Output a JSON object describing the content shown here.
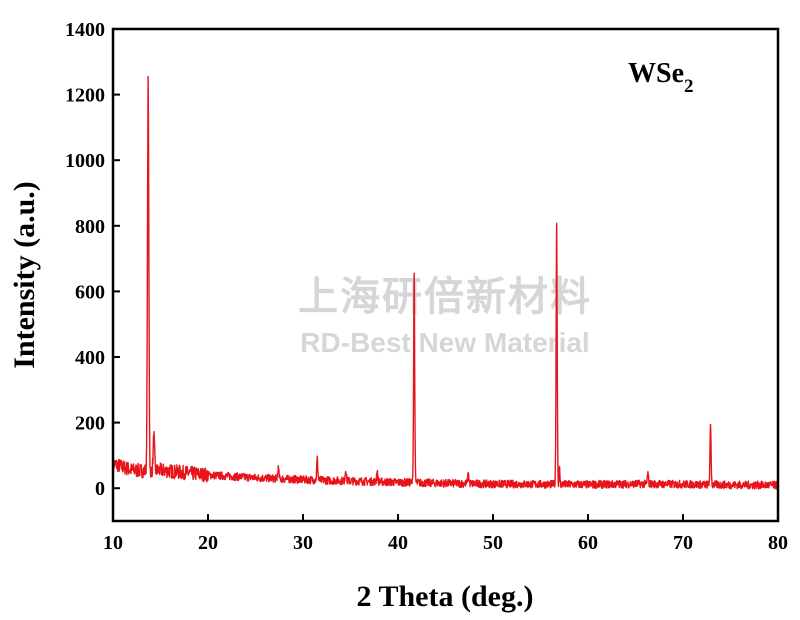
{
  "chart_data": {
    "type": "line",
    "title": "",
    "xlabel": "2 Theta (deg.)",
    "ylabel": "Intensity (a.u.)",
    "xlim": [
      10,
      80
    ],
    "ylim": [
      -100,
      1400
    ],
    "xticks": [
      10,
      20,
      30,
      40,
      50,
      60,
      70,
      80
    ],
    "yticks": [
      0,
      200,
      400,
      600,
      800,
      1000,
      1200,
      1400
    ],
    "grid": false,
    "annotation": {
      "base": "WSe",
      "subscript": "2"
    },
    "watermark": {
      "line1": "上海研倍新材料",
      "line2": "RD-Best New Material"
    },
    "series": [
      {
        "color": "#e8141c",
        "baseline": [
          [
            10,
            75
          ],
          [
            12,
            55
          ],
          [
            14,
            52
          ],
          [
            15,
            55
          ],
          [
            20,
            40
          ],
          [
            25,
            32
          ],
          [
            30,
            26
          ],
          [
            35,
            22
          ],
          [
            40,
            18
          ],
          [
            45,
            15
          ],
          [
            50,
            13
          ],
          [
            55,
            12
          ],
          [
            60,
            11
          ],
          [
            65,
            13
          ],
          [
            70,
            12
          ],
          [
            75,
            10
          ],
          [
            80,
            9
          ]
        ],
        "peaks": [
          {
            "x": 13.7,
            "y": 1250,
            "w": 0.1
          },
          {
            "x": 14.3,
            "y": 160,
            "w": 0.1
          },
          {
            "x": 27.4,
            "y": 60,
            "w": 0.08
          },
          {
            "x": 31.5,
            "y": 90,
            "w": 0.08
          },
          {
            "x": 34.5,
            "y": 60,
            "w": 0.08
          },
          {
            "x": 37.8,
            "y": 50,
            "w": 0.08
          },
          {
            "x": 41.7,
            "y": 660,
            "w": 0.08
          },
          {
            "x": 47.4,
            "y": 40,
            "w": 0.1
          },
          {
            "x": 56.7,
            "y": 815,
            "w": 0.08
          },
          {
            "x": 57.0,
            "y": 60,
            "w": 0.06
          },
          {
            "x": 66.3,
            "y": 45,
            "w": 0.08
          },
          {
            "x": 72.9,
            "y": 195,
            "w": 0.08
          }
        ],
        "noise": 12
      }
    ]
  }
}
